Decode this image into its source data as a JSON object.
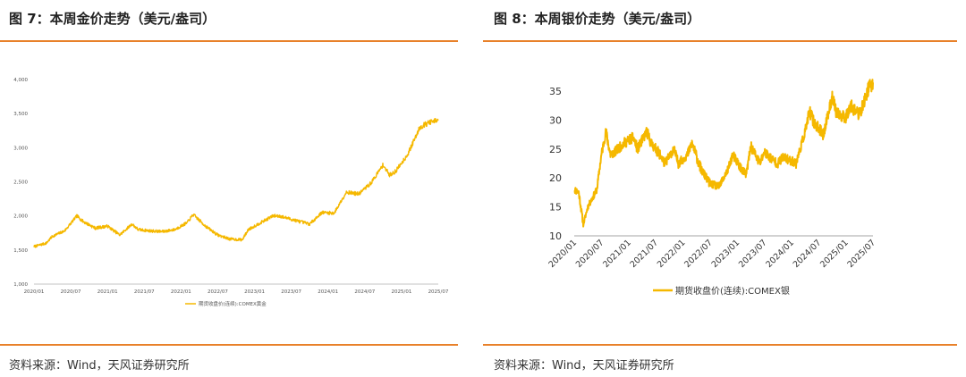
{
  "figures": [
    {
      "title": "图 7：本周金价走势（美元/盎司）",
      "source": "资料来源：Wind，天风证券研究所"
    },
    {
      "title": "图 8：本周银价走势（美元/盎司）",
      "source": "资料来源：Wind，天风证券研究所"
    }
  ],
  "chart_data": [
    {
      "type": "line",
      "x_start": "2020-01",
      "x_end": "2025-07",
      "xticks": [
        "2020/01",
        "2020/07",
        "2021/01",
        "2021/07",
        "2022/01",
        "2022/07",
        "2023/01",
        "2023/07",
        "2024/01",
        "2024/07",
        "2025/01",
        "2025/07"
      ],
      "yticks": [
        "1,000",
        "1,500",
        "2,000",
        "2,500",
        "3,000",
        "3,500",
        "4,000"
      ],
      "ylim": [
        1000,
        4000
      ],
      "grid": false,
      "legend_position": "bottom",
      "color": "#f5b800",
      "series": [
        {
          "name": "期货收盘价(连续):COMEX黄金",
          "points": [
            [
              "2020-01",
              1550
            ],
            [
              "2020-03",
              1600
            ],
            [
              "2020-04",
              1700
            ],
            [
              "2020-06",
              1780
            ],
            [
              "2020-08",
              2000
            ],
            [
              "2020-09",
              1920
            ],
            [
              "2020-11",
              1820
            ],
            [
              "2021-01",
              1850
            ],
            [
              "2021-03",
              1720
            ],
            [
              "2021-05",
              1880
            ],
            [
              "2021-06",
              1800
            ],
            [
              "2021-08",
              1780
            ],
            [
              "2021-10",
              1770
            ],
            [
              "2021-12",
              1800
            ],
            [
              "2022-02",
              1900
            ],
            [
              "2022-03",
              2020
            ],
            [
              "2022-05",
              1850
            ],
            [
              "2022-07",
              1720
            ],
            [
              "2022-09",
              1660
            ],
            [
              "2022-11",
              1650
            ],
            [
              "2022-12",
              1800
            ],
            [
              "2023-02",
              1900
            ],
            [
              "2023-04",
              2000
            ],
            [
              "2023-05",
              2000
            ],
            [
              "2023-07",
              1950
            ],
            [
              "2023-10",
              1880
            ],
            [
              "2023-12",
              2050
            ],
            [
              "2024-02",
              2040
            ],
            [
              "2024-04",
              2350
            ],
            [
              "2024-06",
              2320
            ],
            [
              "2024-08",
              2480
            ],
            [
              "2024-10",
              2750
            ],
            [
              "2024-11",
              2600
            ],
            [
              "2024-12",
              2650
            ],
            [
              "2025-02",
              2900
            ],
            [
              "2025-04",
              3300
            ],
            [
              "2025-05",
              3350
            ],
            [
              "2025-06",
              3380
            ],
            [
              "2025-07",
              3400
            ]
          ]
        }
      ]
    },
    {
      "type": "line",
      "x_start": "2020-01",
      "x_end": "2025-07",
      "xticks": [
        "2020/01",
        "2020/07",
        "2021/01",
        "2021/07",
        "2022/01",
        "2022/07",
        "2023/01",
        "2023/07",
        "2024/01",
        "2024/07",
        "2025/01",
        "2025/07"
      ],
      "yticks": [
        "10",
        "15",
        "20",
        "25",
        "30",
        "35"
      ],
      "ylim": [
        10,
        35
      ],
      "grid": false,
      "legend_position": "bottom",
      "color": "#f5b800",
      "series": [
        {
          "name": "期货收盘价(连续):COMEX银",
          "points": [
            [
              "2020-01",
              18.0
            ],
            [
              "2020-02",
              17.5
            ],
            [
              "2020-03",
              12.0
            ],
            [
              "2020-04",
              15.0
            ],
            [
              "2020-05",
              16.5
            ],
            [
              "2020-06",
              18.0
            ],
            [
              "2020-07",
              24.0
            ],
            [
              "2020-08",
              28.0
            ],
            [
              "2020-09",
              24.0
            ],
            [
              "2020-10",
              24.5
            ],
            [
              "2020-12",
              26.0
            ],
            [
              "2021-02",
              27.0
            ],
            [
              "2021-03",
              25.0
            ],
            [
              "2021-05",
              28.0
            ],
            [
              "2021-06",
              26.0
            ],
            [
              "2021-08",
              24.0
            ],
            [
              "2021-09",
              22.5
            ],
            [
              "2021-11",
              25.0
            ],
            [
              "2021-12",
              22.5
            ],
            [
              "2022-02",
              24.0
            ],
            [
              "2022-03",
              26.0
            ],
            [
              "2022-05",
              21.5
            ],
            [
              "2022-07",
              19.0
            ],
            [
              "2022-09",
              18.5
            ],
            [
              "2022-11",
              21.5
            ],
            [
              "2022-12",
              24.0
            ],
            [
              "2023-02",
              21.5
            ],
            [
              "2023-03",
              20.5
            ],
            [
              "2023-04",
              25.5
            ],
            [
              "2023-06",
              22.5
            ],
            [
              "2023-07",
              24.5
            ],
            [
              "2023-09",
              23.0
            ],
            [
              "2023-10",
              22.5
            ],
            [
              "2023-11",
              23.5
            ],
            [
              "2024-01",
              23.0
            ],
            [
              "2024-02",
              22.5
            ],
            [
              "2024-04",
              28.0
            ],
            [
              "2024-05",
              31.5
            ],
            [
              "2024-06",
              29.5
            ],
            [
              "2024-08",
              27.5
            ],
            [
              "2024-10",
              34.0
            ],
            [
              "2024-11",
              31.0
            ],
            [
              "2025-01",
              30.5
            ],
            [
              "2025-02",
              32.5
            ],
            [
              "2025-04",
              31.0
            ],
            [
              "2025-05",
              33.0
            ],
            [
              "2025-06",
              35.5
            ],
            [
              "2025-07",
              36.5
            ]
          ]
        }
      ]
    }
  ]
}
